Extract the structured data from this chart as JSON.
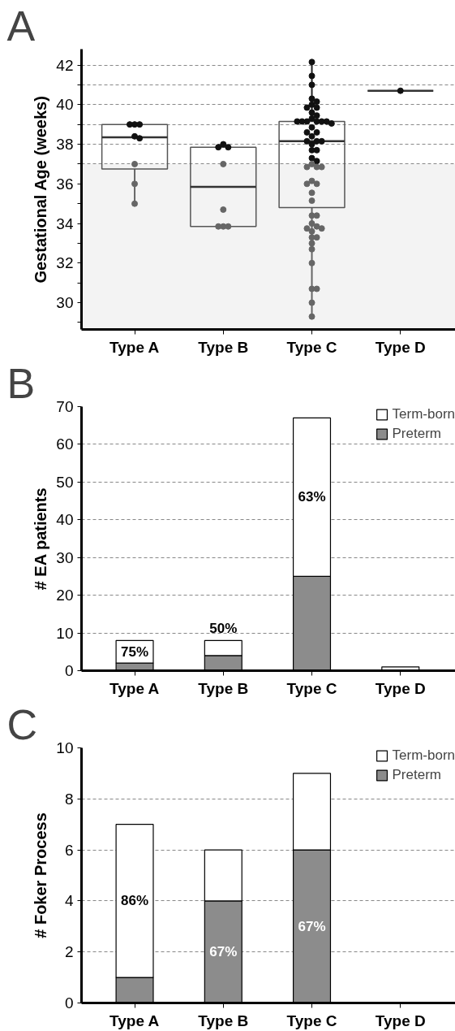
{
  "chart_data": [
    {
      "type": "box",
      "title": "A",
      "ylabel": "Gestational Age (weeks)",
      "categories": [
        "Type A",
        "Type B",
        "Type C",
        "Type D"
      ],
      "boxes": [
        {
          "low": 35,
          "q1": 36.75,
          "median": 38.35,
          "q3": 39,
          "high": 39
        },
        {
          "low": 33.85,
          "q1": 33.85,
          "median": 35.85,
          "q3": 37.85,
          "high": 38
        },
        {
          "low": 29.3,
          "q1": 34.8,
          "median": 38.15,
          "q3": 39.15,
          "high": 42.15
        },
        {
          "low": 40.7,
          "q1": 40.7,
          "median": 40.7,
          "q3": 40.7,
          "high": 40.7
        }
      ],
      "series": [
        {
          "type": "scatter",
          "color": "#111111",
          "x": [
            "Type A",
            "Type A",
            "Type A",
            "Type A",
            "Type A",
            "Type B",
            "Type B",
            "Type B",
            "Type C",
            "Type C",
            "Type C",
            "Type C",
            "Type C",
            "Type C",
            "Type C",
            "Type C",
            "Type C",
            "Type C",
            "Type C",
            "Type C",
            "Type C",
            "Type C",
            "Type C",
            "Type C",
            "Type C",
            "Type C",
            "Type C",
            "Type C",
            "Type C",
            "Type C",
            "Type C",
            "Type C",
            "Type C",
            "Type C",
            "Type C",
            "Type C",
            "Type C",
            "Type C",
            "Type D"
          ],
          "values": [
            39,
            39,
            39,
            38.4,
            38.3,
            38,
            37.85,
            37.85,
            42.15,
            41.45,
            41.0,
            40.3,
            40.15,
            40.0,
            39.85,
            39.85,
            39.6,
            39.45,
            39.3,
            39.15,
            39.15,
            39.15,
            39.15,
            39.15,
            39.15,
            39.05,
            38.85,
            38.6,
            38.6,
            38.4,
            38.15,
            38.15,
            38.15,
            38.0,
            37.7,
            37.7,
            37.3,
            37.15,
            40.7
          ]
        },
        {
          "type": "scatter",
          "color": "#666666",
          "x": [
            "Type A",
            "Type A",
            "Type A",
            "Type B",
            "Type B",
            "Type B",
            "Type B",
            "Type B",
            "Type C",
            "Type C",
            "Type C",
            "Type C",
            "Type C",
            "Type C",
            "Type C",
            "Type C",
            "Type C",
            "Type C",
            "Type C",
            "Type C",
            "Type C",
            "Type C",
            "Type C",
            "Type C",
            "Type C",
            "Type C",
            "Type C",
            "Type C",
            "Type C",
            "Type C",
            "Type C",
            "Type C",
            "Type C"
          ],
          "values": [
            37,
            36,
            35,
            37,
            34.7,
            33.85,
            33.85,
            33.85,
            37.0,
            36.85,
            36.85,
            36.85,
            36.15,
            36.0,
            36.0,
            35.55,
            35.15,
            34.4,
            34.4,
            34.0,
            33.85,
            33.75,
            33.75,
            33.6,
            33.3,
            33.3,
            33.0,
            32.7,
            32.0,
            30.7,
            30.7,
            30.0,
            29.3
          ]
        }
      ],
      "ylim": [
        28.65,
        42.8
      ],
      "yticks": [
        {
          "value": 29,
          "label": null
        },
        30,
        {
          "value": 31,
          "label": null
        },
        32,
        {
          "value": 33,
          "label": null
        },
        34,
        {
          "value": 35,
          "label": null
        },
        36,
        {
          "value": 37,
          "label": null
        },
        38,
        {
          "value": 39,
          "label": null
        },
        40,
        {
          "value": 41,
          "label": null
        },
        42
      ],
      "grid": "y",
      "marker": "circle",
      "bands": [
        {
          "axis": "y",
          "from": 28.65,
          "to": 37,
          "color": "#f3f3f3"
        }
      ]
    },
    {
      "type": "bar",
      "title": "B",
      "ylabel": "# EA patients",
      "categories": [
        "Type A",
        "Type B",
        "Type C",
        "Type D"
      ],
      "stacked": true,
      "series": [
        {
          "name": "Preterm",
          "color": "#8c8c8c",
          "values": [
            2,
            4,
            25,
            0
          ]
        },
        {
          "name": "Term-born",
          "color": "#ffffff",
          "values": [
            6,
            4,
            42,
            1
          ]
        }
      ],
      "ylim": [
        0,
        70
      ],
      "yticks": [
        0,
        10,
        20,
        30,
        40,
        50,
        60,
        70
      ],
      "grid": "y",
      "legend": "top right",
      "annotations": [
        "75%",
        "50%",
        "63%"
      ]
    },
    {
      "type": "bar",
      "title": "C",
      "ylabel": "# Foker Process",
      "categories": [
        "Type A",
        "Type B",
        "Type C",
        "Type D"
      ],
      "stacked": true,
      "series": [
        {
          "name": "Preterm",
          "color": "#8c8c8c",
          "values": [
            1,
            4,
            6,
            0
          ]
        },
        {
          "name": "Term-born",
          "color": "#ffffff",
          "values": [
            6,
            2,
            3,
            0
          ]
        }
      ],
      "ylim": [
        0,
        10
      ],
      "yticks": [
        0,
        2,
        4,
        6,
        8,
        10
      ],
      "grid": "y",
      "legend": "top right",
      "annotations": [
        "86%",
        "67%",
        "67%"
      ]
    }
  ]
}
